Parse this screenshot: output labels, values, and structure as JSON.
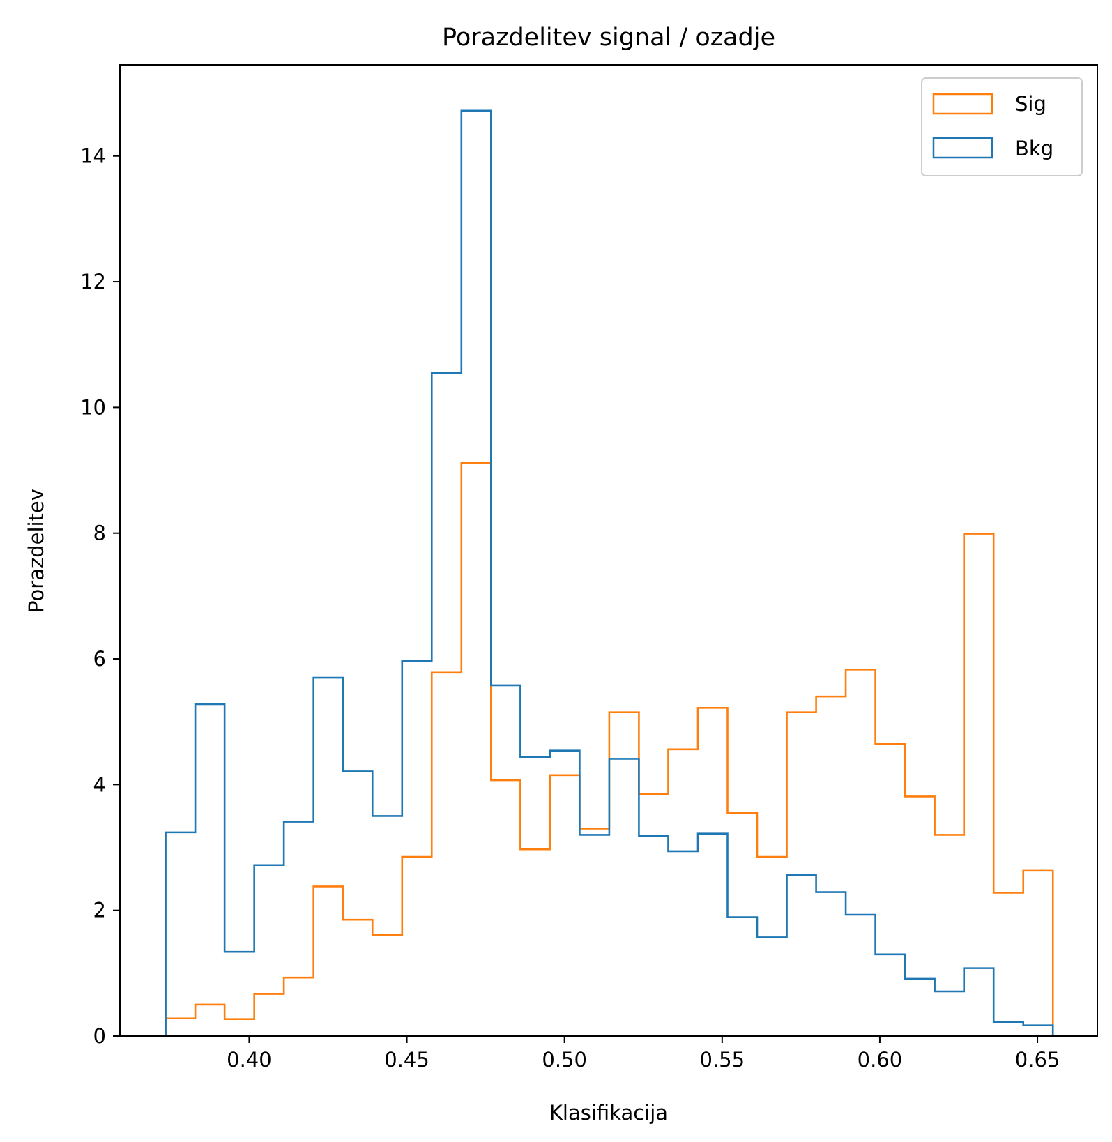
{
  "chart_data": {
    "type": "histogram",
    "title": "Porazdelitev signal / ozadje",
    "xlabel": "Klasifikacija",
    "ylabel": "Porazdelitev",
    "xlim": [
      0.359,
      0.669
    ],
    "ylim": [
      0,
      15.45
    ],
    "x_ticks": [
      0.4,
      0.45,
      0.5,
      0.55,
      0.6,
      0.65
    ],
    "x_tick_labels": [
      "0.40",
      "0.45",
      "0.50",
      "0.55",
      "0.60",
      "0.65"
    ],
    "y_ticks": [
      0,
      2,
      4,
      6,
      8,
      10,
      12,
      14
    ],
    "y_tick_labels": [
      "0",
      "2",
      "4",
      "6",
      "8",
      "10",
      "12",
      "14"
    ],
    "bin_edges": [
      0.3735,
      0.3829,
      0.3922,
      0.4016,
      0.411,
      0.4204,
      0.4298,
      0.4391,
      0.4485,
      0.4579,
      0.4673,
      0.4767,
      0.486,
      0.4954,
      0.5048,
      0.5142,
      0.5236,
      0.5329,
      0.5423,
      0.5517,
      0.5611,
      0.5705,
      0.5798,
      0.5892,
      0.5986,
      0.608,
      0.6174,
      0.6267,
      0.6361,
      0.6455,
      0.6549
    ],
    "legend_position": "upper right",
    "grid": false,
    "series": [
      {
        "name": "Sig",
        "color": "#ff7f0e",
        "values": [
          0.28,
          0.5,
          0.27,
          0.67,
          0.93,
          2.38,
          1.85,
          1.61,
          2.85,
          5.78,
          9.12,
          4.07,
          2.97,
          4.15,
          3.3,
          5.15,
          3.85,
          4.56,
          5.22,
          3.55,
          2.85,
          5.15,
          5.4,
          5.83,
          4.65,
          3.81,
          3.2,
          7.99,
          2.28,
          2.63
        ]
      },
      {
        "name": "Bkg",
        "color": "#1f77b4",
        "values": [
          3.24,
          5.28,
          1.34,
          2.72,
          3.41,
          5.7,
          4.21,
          3.5,
          5.97,
          10.55,
          14.72,
          5.58,
          4.44,
          4.54,
          3.2,
          4.41,
          3.18,
          2.94,
          3.22,
          1.89,
          1.57,
          2.56,
          2.29,
          1.93,
          1.3,
          0.91,
          0.71,
          1.08,
          0.22,
          0.17
        ]
      }
    ]
  }
}
